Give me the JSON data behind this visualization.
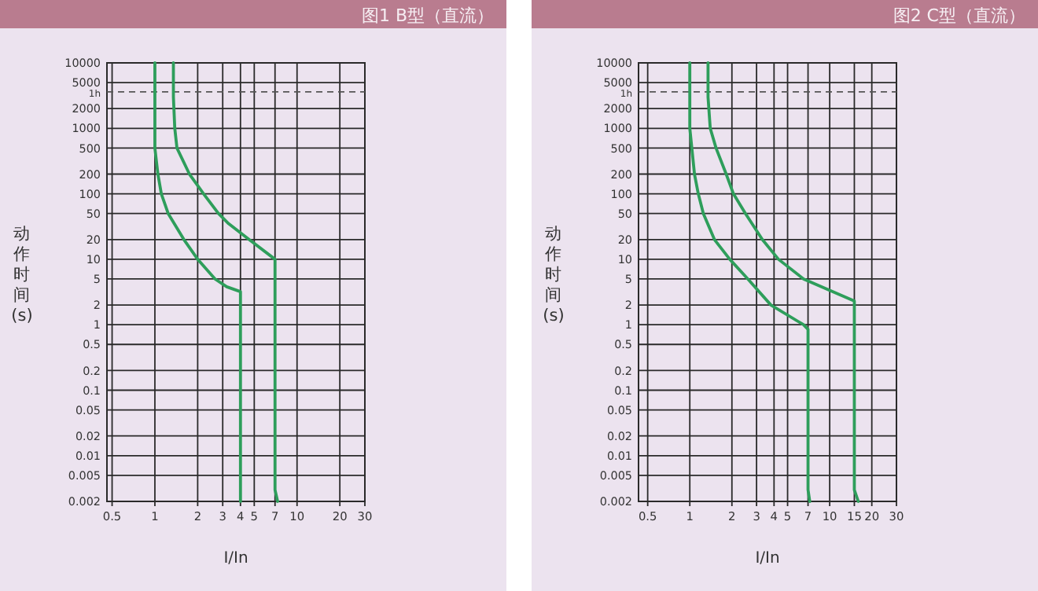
{
  "chart_data": [
    {
      "type": "line",
      "title": "图1 B型（直流）",
      "xlabel": "I/In",
      "ylabel": "动作时间(s)",
      "log": "xy",
      "grid": true,
      "xlim": [
        0.46,
        30
      ],
      "ylim": [
        0.002,
        10000
      ],
      "xticks": [
        0.5,
        1,
        2,
        3,
        4,
        5,
        7,
        10,
        20,
        30
      ],
      "yticks": [
        0.002,
        0.005,
        0.01,
        0.02,
        0.05,
        0.1,
        0.2,
        0.5,
        1,
        2,
        5,
        10,
        20,
        50,
        100,
        200,
        500,
        1000,
        2000,
        5000,
        10000
      ],
      "ref_lines": [
        {
          "axis": "y",
          "value": 3600,
          "label": "1h",
          "line_style": "dashed",
          "color": "#555555"
        }
      ],
      "series": [
        {
          "color": "#2e9e5b",
          "x": [
            1,
            1,
            1.05,
            1.11,
            1.24,
            1.6,
            2,
            2.65,
            3.2,
            4,
            4
          ],
          "values": [
            10000,
            500,
            200,
            100,
            50,
            20,
            10,
            5,
            3.8,
            3.2,
            0.002
          ]
        },
        {
          "color": "#2e9e5b",
          "x": [
            1.35,
            1.35,
            1.38,
            1.43,
            1.75,
            2.2,
            2.8,
            3.3,
            4.6,
            7,
            7,
            7.3
          ],
          "values": [
            10000,
            3000,
            1000,
            500,
            200,
            100,
            50,
            35,
            20,
            10,
            0.003,
            0.002
          ]
        }
      ]
    },
    {
      "type": "line",
      "title": "图2 C型（直流）",
      "xlabel": "I/In",
      "ylabel": "动作时间(s)",
      "log": "xy",
      "grid": true,
      "xlim": [
        0.43,
        30
      ],
      "ylim": [
        0.002,
        10000
      ],
      "xticks": [
        0.5,
        1,
        2,
        3,
        4,
        5,
        7,
        10,
        15,
        20,
        30
      ],
      "yticks": [
        0.002,
        0.005,
        0.01,
        0.02,
        0.05,
        0.1,
        0.2,
        0.5,
        1,
        2,
        5,
        10,
        20,
        50,
        100,
        200,
        500,
        1000,
        2000,
        5000,
        10000
      ],
      "ref_lines": [
        {
          "axis": "y",
          "value": 3600,
          "label": "1h",
          "line_style": "dashed",
          "color": "#555555"
        }
      ],
      "series": [
        {
          "color": "#2e9e5b",
          "x": [
            1,
            1,
            1.08,
            1.15,
            1.25,
            1.5,
            1.93,
            2.6,
            3.8,
            6.5,
            7,
            7,
            7.2
          ],
          "values": [
            10000,
            1000,
            200,
            100,
            50,
            20,
            10,
            5,
            2,
            1,
            0.85,
            0.003,
            0.002
          ]
        },
        {
          "color": "#2e9e5b",
          "x": [
            1.35,
            1.35,
            1.4,
            1.54,
            1.82,
            2.05,
            2.5,
            3.3,
            4.3,
            6.5,
            15,
            15,
            16
          ],
          "values": [
            10000,
            3000,
            1000,
            500,
            200,
            100,
            50,
            20,
            10,
            5,
            2.3,
            0.003,
            0.002
          ]
        }
      ]
    }
  ]
}
